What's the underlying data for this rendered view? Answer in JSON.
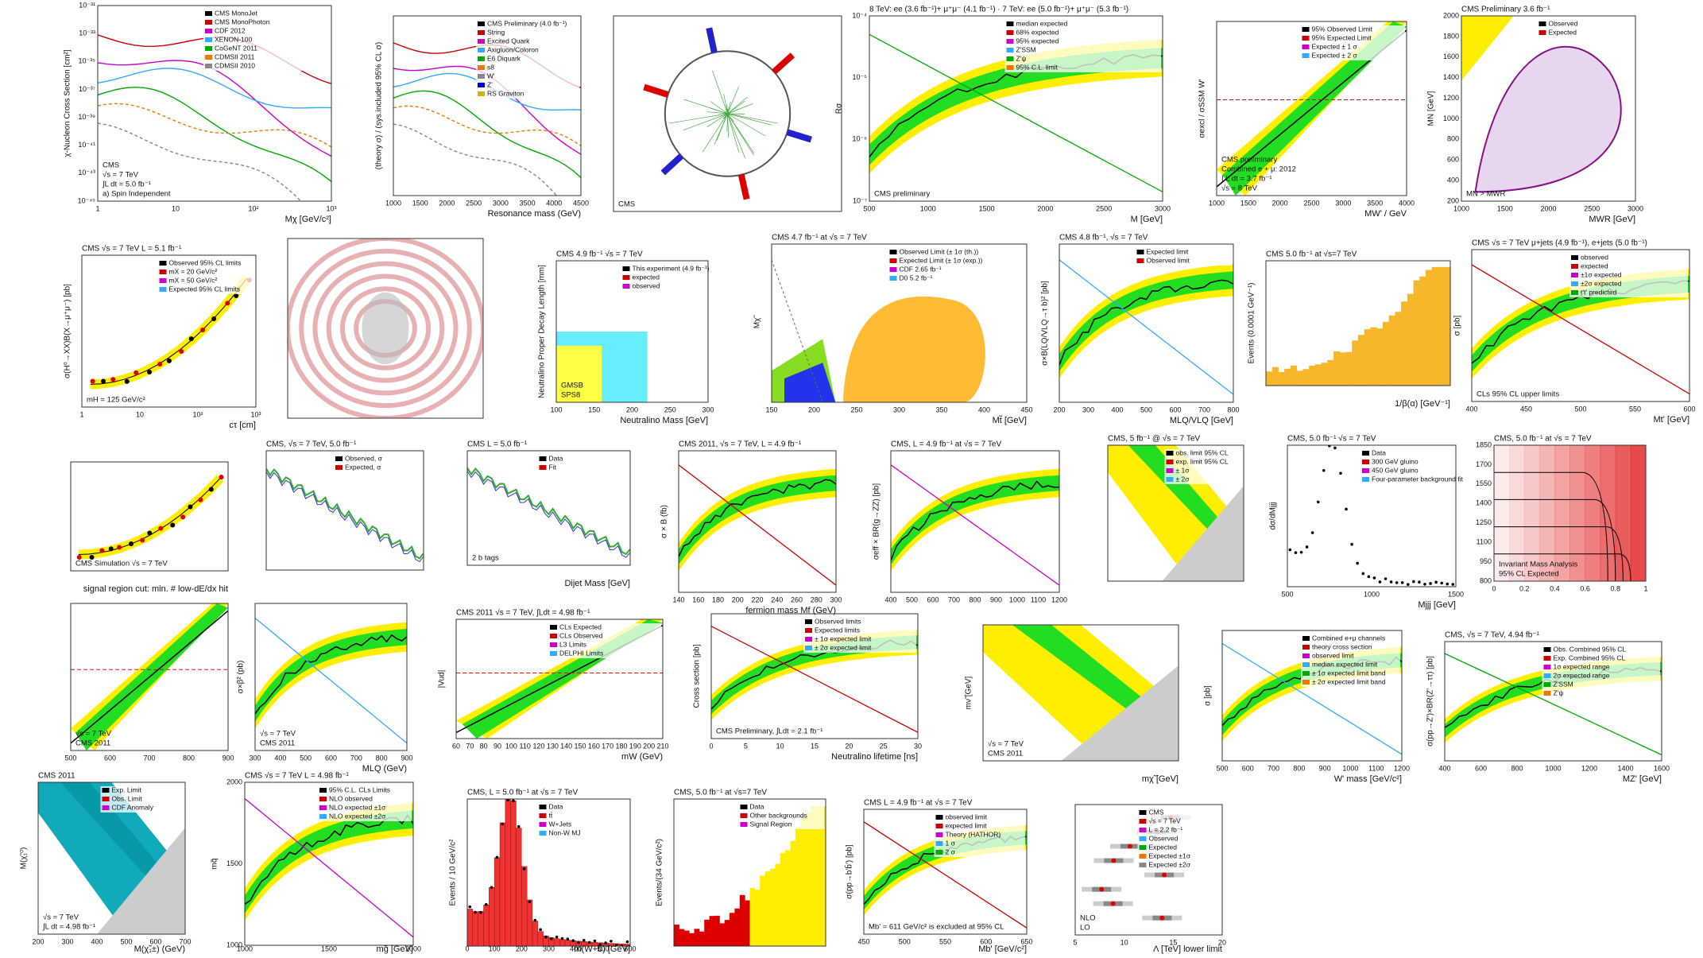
{
  "panels": [
    {
      "ylabel": "χ-Nucleon Cross Section [cm²]",
      "xlabel": "Mχ [GeV/c²]",
      "legend": [
        "CMS MonoJet",
        "CMS MonoPhoton",
        "CDF 2012",
        "XENON-100",
        "CoGeNT 2011",
        "CDMSII 2011",
        "CDMSII 2010"
      ],
      "notes": [
        "a) Spin Independent",
        "∫L dt = 5.0 fb⁻¹",
        "√s = 7 TeV",
        "CMS"
      ],
      "xticks": [
        "1",
        "10",
        "10²",
        "10³"
      ],
      "yticks": [
        "10⁻³¹",
        "10⁻³³",
        "10⁻³⁵",
        "10⁻³⁷",
        "10⁻³⁹",
        "10⁻⁴¹",
        "10⁻⁴³",
        "10⁻⁴⁵"
      ]
    },
    {
      "ylabel": "(theory σ) / (sys.included 95% CL σ)",
      "xlabel": "Resonance mass (GeV)",
      "legend": [
        "CMS Preliminary (4.0 fb⁻¹)",
        "String",
        "Excited Quark",
        "Axigluon/Coloron",
        "E6 Diquark",
        "s8",
        "W'",
        "Z'",
        "RS Graviton"
      ],
      "xticks": [
        "1000",
        "1500",
        "2000",
        "2500",
        "3000",
        "3500",
        "4000",
        "4500"
      ]
    },
    {
      "notes": [
        "CMS"
      ]
    },
    {
      "title": "8 TeV: ee (3.6 fb⁻¹)+ μ⁺μ⁻ (4.1 fb⁻¹) · 7 TeV: ee (5.0 fb⁻¹)+ μ⁺μ⁻ (5.3 fb⁻¹)",
      "ylabel": "Rσ",
      "xlabel": "M [GeV]",
      "legend": [
        "median expected",
        "68% expected",
        "95% expected",
        "Z'SSM",
        "Z'ψ",
        "95% C.L. limit"
      ],
      "notes": [
        "CMS preliminary"
      ],
      "xticks": [
        "500",
        "1000",
        "1500",
        "2000",
        "2500",
        "3000"
      ],
      "yticks": [
        "10⁻⁴",
        "10⁻⁵",
        "10⁻⁶",
        "10⁻⁷"
      ]
    },
    {
      "ylabel": "σexcl / σSSM W'",
      "xlabel": "MW' / GeV",
      "legend": [
        "95% Observed Limit",
        "95% Expected Limit",
        "Expected ± 1 σ",
        "Expected ± 2 σ"
      ],
      "notes": [
        "√s = 8 TeV",
        "∫ L dt = 3.7 fb⁻¹",
        "Combined e + μ: 2012",
        "CMS preliminary"
      ],
      "xticks": [
        "1000",
        "1500",
        "2000",
        "2500",
        "3000",
        "3500",
        "4000"
      ]
    },
    {
      "title": "CMS Preliminary   3.6 fb⁻¹",
      "ylabel": "MN [GeV]",
      "xlabel": "MWR [GeV]",
      "legend": [
        "Observed",
        "Expected"
      ],
      "notes": [
        "MN > MWR"
      ],
      "xticks": [
        "1000",
        "1500",
        "2000",
        "2500",
        "3000"
      ],
      "yticks": [
        "2000",
        "1800",
        "1600",
        "1400",
        "1200",
        "1000",
        "800",
        "600",
        "400",
        "200"
      ]
    },
    {
      "title": "CMS   √s = 7 TeV   L = 5.1 fb⁻¹",
      "ylabel": "σ(H⁰→XX)B(X→μ⁺μ⁻) [pb]",
      "xlabel": "cτ [cm]",
      "legend": [
        "Observed 95% CL limits",
        "mX = 20 GeV/c²",
        "mX = 50 GeV/c²",
        "Expected 95% CL limits"
      ],
      "notes": [
        "mH = 125 GeV/c²"
      ],
      "xticks": [
        "1",
        "10",
        "10²",
        "10³"
      ]
    },
    {},
    {
      "title": "CMS 4.9 fb⁻¹   √s = 7 TeV",
      "ylabel": "Neutralino Proper Decay Length [mm]",
      "xlabel": "Neutralino Mass [GeV]",
      "legend": [
        "This experiment (4.9 fb⁻¹)",
        "expected",
        "observed"
      ],
      "notes": [
        "SPS8",
        "GMSB"
      ],
      "xticks": [
        "100",
        "150",
        "200",
        "250",
        "300"
      ]
    },
    {
      "title": "CMS 4.7 fb⁻¹ at √s = 7 TeV",
      "ylabel": "Mχ̃",
      "xlabel": "Mt̃ [GeV]",
      "legend": [
        "Observed Limit (± 1σ (th.))",
        "Expected Limit (± 1σ (exp.))",
        "CDF 2.65 fb⁻¹",
        "D0 5.2 fb⁻¹"
      ],
      "xticks": [
        "150",
        "200",
        "250",
        "300",
        "350",
        "400",
        "450"
      ]
    },
    {
      "title": "CMS 4.8 fb⁻¹, √s = 7 TeV",
      "ylabel": "σ×B(LQ/VLQ→τ b)² [pb]",
      "xlabel": "MLQ/VLQ [GeV]",
      "legend": [
        "Expected limit",
        "Observed limit"
      ],
      "xticks": [
        "200",
        "300",
        "400",
        "500",
        "600",
        "700",
        "800"
      ]
    },
    {
      "title": "CMS 5.0 fb⁻¹ at √s=7 TeV",
      "ylabel": "Events (0.0001 GeV⁻¹)",
      "xlabel": "1/β(α) [GeV⁻¹]"
    },
    {
      "title": "CMS   √s = 7 TeV   μ+jets (4.9 fb⁻¹), e+jets (5.0 fb⁻¹)",
      "ylabel": "σ [pb]",
      "xlabel": "Mt' [GeV]",
      "legend": [
        "observed",
        "expected",
        "±1σ expected",
        "±2σ expected",
        "t't' predicted"
      ],
      "notes": [
        "CLs 95% CL upper limits"
      ],
      "xticks": [
        "400",
        "450",
        "500",
        "550",
        "600"
      ]
    },
    {
      "notes": [
        "CMS Simulation √s = 7 TeV"
      ],
      "xlabel": "signal region cut: min. # low-dE/dx hit"
    },
    {
      "title": "CMS, √s = 7 TeV, 5.0 fb⁻¹",
      "legend": [
        "Observed, σ",
        "Expected, σ"
      ]
    },
    {
      "title": "CMS   L = 5.0 fb⁻¹",
      "legend": [
        "Data",
        "Fit"
      ],
      "notes": [
        "2 b tags"
      ],
      "xlabel": "Dijet Mass [GeV]"
    },
    {
      "title": "CMS 2011, √s = 7 TeV, L = 4.9 fb⁻¹",
      "ylabel": "σ × B (fb)",
      "xlabel": "fermion mass Mf (GeV)",
      "xticks": [
        "140",
        "160",
        "180",
        "200",
        "220",
        "240",
        "260",
        "280",
        "300"
      ]
    },
    {
      "title": "CMS, L = 4.9 fb⁻¹ at √s = 7 TeV",
      "ylabel": "σeff × BR(g→ZZ) [pb]",
      "xticks": [
        "400",
        "500",
        "600",
        "700",
        "800",
        "900",
        "1000",
        "1100",
        "1200"
      ]
    },
    {
      "title": "CMS, 5 fb⁻¹ @ √s = 7 TeV",
      "legend": [
        "obs. limit 95% CL",
        "exp. limit 95% CL",
        "± 1σ",
        "± 2σ"
      ]
    },
    {
      "title": "CMS, 5.0 fb⁻¹   √s = 7 TeV",
      "ylabel": "dσ/dMjjj",
      "xlabel": "Mjjj [GeV]",
      "legend": [
        "Data",
        "300 GeV gluino",
        "450 GeV gluino",
        "Four-parameter background fit"
      ],
      "xticks": [
        "500",
        "1000",
        "1500"
      ]
    },
    {
      "title": "CMS, 5.0 fb⁻¹ at √s = 7 TeV",
      "notes": [
        "95% CL Expected",
        "Invariant Mass Analysis"
      ],
      "xticks": [
        "0",
        "0.2",
        "0.4",
        "0.6",
        "0.8",
        "1"
      ],
      "yticks": [
        "1850",
        "1700",
        "1550",
        "1400",
        "1250",
        "1100",
        "950",
        "800"
      ]
    },
    {
      "notes": [
        "CMS 2011",
        "√s = 7 TeV"
      ],
      "xticks": [
        "500",
        "600",
        "700",
        "800",
        "900"
      ]
    },
    {
      "ylabel": "σ×β² (pb)",
      "xlabel": "MLQ (GeV)",
      "notes": [
        "CMS 2011",
        "√s = 7 TeV"
      ],
      "xticks": [
        "300",
        "400",
        "500",
        "600",
        "700",
        "800",
        "900"
      ]
    },
    {
      "title": "CMS 2011   √s = 7 TeV, ∫Ldt = 4.98 fb⁻¹",
      "ylabel": "|Vud|",
      "xlabel": "mW (GeV)",
      "legend": [
        "CLs Expected",
        "CLs Observed",
        "L3 Limits",
        "DELPHI Limits"
      ],
      "xticks": [
        "60",
        "70",
        "80",
        "90",
        "100",
        "110",
        "120",
        "130",
        "140",
        "150",
        "160",
        "170",
        "180",
        "190",
        "200",
        "210"
      ]
    },
    {
      "ylabel": "Cross section [pb]",
      "xlabel": "Neutralino lifetime [ns]",
      "legend": [
        "Observed limits",
        "Expected limits",
        "± 1σ expected limit",
        "± 2σ expected limit"
      ],
      "notes": [
        "CMS Preliminary, ∫Ldt = 2.1 fb⁻¹"
      ],
      "xticks": [
        "0",
        "5",
        "10",
        "15",
        "20",
        "25",
        "30"
      ]
    },
    {
      "ylabel": "mν̃ [GeV]",
      "xlabel": "mχ̃ [GeV]",
      "notes": [
        "CMS 2011",
        "√s = 7 TeV"
      ]
    },
    {
      "ylabel": "σ [pb]",
      "xlabel": "W' mass [GeV/c²]",
      "legend": [
        "Combined e+μ channels",
        "theory cross section",
        "observed limit",
        "median expected limit",
        "± 1σ expected limit band",
        "± 2σ expected limit band"
      ],
      "xticks": [
        "500",
        "600",
        "700",
        "800",
        "900",
        "1000",
        "1100",
        "1200"
      ]
    },
    {
      "title": "CMS, √s = 7 TeV, 4.94 fb⁻¹",
      "ylabel": "σ(pp→Z')×BR(Z'→ττ) [pb]",
      "xlabel": "MZ' [GeV]",
      "legend": [
        "Obs. Combined 95% CL",
        "Exp. Combined 95% CL",
        "1σ expected range",
        "2σ expected range",
        "Z'SSM",
        "Z'ψ"
      ],
      "xticks": [
        "400",
        "600",
        "800",
        "1000",
        "1200",
        "1400",
        "1600"
      ]
    },
    {
      "title": "CMS 2011",
      "ylabel": "M(χ̃₁⁰)",
      "xlabel": "M(χ̃₁±) (GeV)",
      "legend": [
        "Exp. Limit",
        "Obs. Limit",
        "CDF Anomaly"
      ],
      "notes": [
        "∫L dt = 4.98 fb⁻¹",
        "√s = 7 TeV"
      ],
      "xticks": [
        "200",
        "300",
        "400",
        "500",
        "600",
        "700"
      ]
    },
    {
      "title": "CMS   √s = 7 TeV   L = 4.98 fb⁻¹",
      "ylabel": "mq̃",
      "xlabel": "mg̃ [GeV]",
      "legend": [
        "95% C.L. CLs Limits",
        "NLO observed",
        "NLO expected ±1σ",
        "NLO expected ±2σ"
      ],
      "xticks": [
        "1000",
        "1500",
        "2000"
      ],
      "yticks": [
        "2000",
        "1500",
        "1000"
      ]
    },
    {
      "title": "CMS, L = 5.0 fb⁻¹ at √s = 7 TeV",
      "ylabel": "Events / 10 GeV/c²",
      "xlabel": "m(W+b) [GeV]",
      "legend": [
        "Data",
        "tt̄",
        "W+Jets",
        "Non-W MJ"
      ],
      "xticks": [
        "0",
        "100",
        "200",
        "300",
        "400",
        "500",
        "600"
      ]
    },
    {
      "title": "CMS, 5.0 fb⁻¹ at √s=7 TeV",
      "ylabel": "Events/(34 GeV/c²)",
      "legend": [
        "Data",
        "Other backgrounds",
        "Signal Region"
      ]
    },
    {
      "title": "CMS  L = 4.9 fb⁻¹ at √s = 7 TeV",
      "ylabel": "σ(pp→b'b̄') [pb]",
      "xlabel": "Mb' [GeV/c²]",
      "legend": [
        "observed limit",
        "expected limit",
        "Theory (HATHOR)",
        "1 σ",
        "2 σ"
      ],
      "notes": [
        "Mb' = 611 GeV/c² is excluded at 95% CL"
      ],
      "xticks": [
        "450",
        "500",
        "550",
        "600",
        "650"
      ]
    },
    {
      "xlabel": "Λ [TeV] lower limit",
      "legend": [
        "CMS",
        "√s = 7 TeV",
        "L = 2.2 fb⁻¹",
        "Observed",
        "Expected",
        "Expected ±1σ",
        "Expected ±2σ"
      ],
      "notes": [
        "LO",
        "NLO"
      ],
      "xticks": [
        "5",
        "10",
        "15",
        "20"
      ]
    }
  ]
}
